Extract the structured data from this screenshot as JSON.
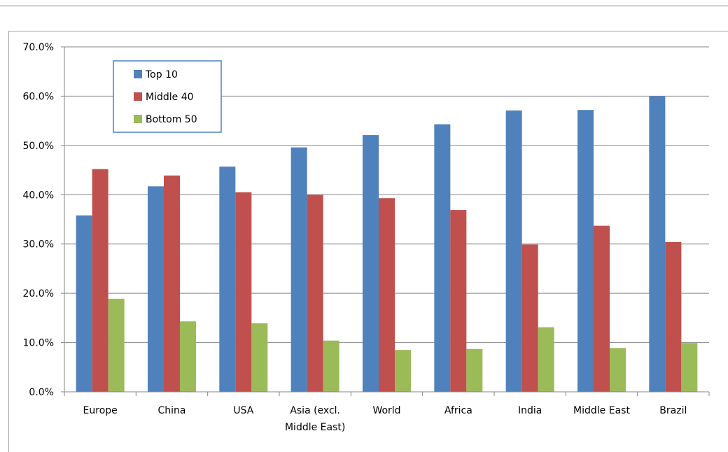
{
  "chart_data": {
    "type": "bar",
    "categories": [
      "Europe",
      "China",
      "USA",
      "Asia (excl. Middle East)",
      "World",
      "Africa",
      "India",
      "Middle East",
      "Brazil"
    ],
    "category_lines": [
      [
        "Europe"
      ],
      [
        "China"
      ],
      [
        "USA"
      ],
      [
        "Asia (excl.",
        "Middle East)"
      ],
      [
        "World"
      ],
      [
        "Africa"
      ],
      [
        "India"
      ],
      [
        "Middle East"
      ],
      [
        "Brazil"
      ]
    ],
    "series": [
      {
        "name": "Top 10",
        "color": "#4f81bd",
        "values": [
          35.8,
          41.7,
          45.7,
          49.6,
          52.1,
          54.3,
          57.1,
          57.2,
          60.0
        ]
      },
      {
        "name": "Middle 40",
        "color": "#c0504d",
        "values": [
          45.2,
          43.9,
          40.5,
          40.0,
          39.3,
          36.9,
          29.9,
          33.7,
          30.4
        ]
      },
      {
        "name": "Bottom 50",
        "color": "#9bbb59",
        "values": [
          18.9,
          14.3,
          13.9,
          10.4,
          8.5,
          8.7,
          13.1,
          8.9,
          9.9
        ]
      }
    ],
    "ylim": [
      0,
      70
    ],
    "ytick_step": 10,
    "ytick_labels": [
      "0.0%",
      "10.0%",
      "20.0%",
      "30.0%",
      "40.0%",
      "50.0%",
      "60.0%",
      "70.0%"
    ],
    "grid": true,
    "legend_position": "top-left",
    "title": "",
    "xlabel": "",
    "ylabel": ""
  }
}
